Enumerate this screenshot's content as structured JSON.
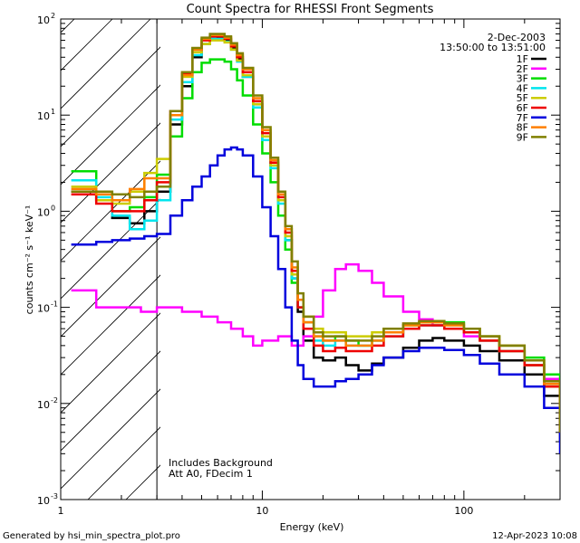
{
  "chart_data": {
    "type": "line",
    "title": "Count Spectra for RHESSI Front Segments",
    "xlabel": "Energy (keV)",
    "ylabel": "counts cm⁻² s⁻¹ keV⁻¹",
    "xscale": "log",
    "yscale": "log",
    "xlim": [
      1,
      300
    ],
    "ylim": [
      0.001,
      100
    ],
    "x_tick_labels": [
      {
        "value": 1,
        "label": "1"
      },
      {
        "value": 10,
        "label": "10"
      },
      {
        "value": 100,
        "label": "100"
      }
    ],
    "y_tick_labels": [
      {
        "value": 0.001,
        "label": "10",
        "exp": "-3"
      },
      {
        "value": 0.01,
        "label": "10",
        "exp": "-2"
      },
      {
        "value": 0.1,
        "label": "10",
        "exp": "-1"
      },
      {
        "value": 1,
        "label": "10",
        "exp": "0"
      },
      {
        "value": 10,
        "label": "10",
        "exp": "1"
      },
      {
        "value": 100,
        "label": "10",
        "exp": "2"
      }
    ],
    "excluded_region": {
      "x_start": 1,
      "x_end": 3,
      "style": "hatched"
    },
    "date": "2-Dec-2003",
    "time_range": "13:50:00 to 13:51:00",
    "legend_position": "top-right",
    "annotations": [
      "Includes Background",
      "Att A0, FDecim 1"
    ],
    "series": [
      {
        "name": "1F",
        "color": "#000000",
        "x": [
          1.2,
          1.5,
          1.8,
          2.2,
          2.6,
          3.0,
          3.5,
          4,
          4.5,
          5,
          5.5,
          6,
          6.5,
          7,
          7.5,
          8,
          9,
          10,
          11,
          12,
          13,
          14,
          15,
          16,
          18,
          20,
          23,
          26,
          30,
          35,
          40,
          50,
          60,
          70,
          80,
          100,
          120,
          150,
          200,
          250,
          300
        ],
        "y": [
          1.6,
          1.3,
          0.85,
          0.75,
          1.0,
          1.6,
          8,
          20,
          40,
          55,
          62,
          63,
          60,
          50,
          38,
          25,
          13,
          6,
          3,
          1.3,
          0.5,
          0.2,
          0.09,
          0.045,
          0.03,
          0.028,
          0.03,
          0.025,
          0.022,
          0.026,
          0.03,
          0.038,
          0.045,
          0.048,
          0.045,
          0.04,
          0.035,
          0.028,
          0.02,
          0.012,
          0.004
        ]
      },
      {
        "name": "2F",
        "color": "#ff00ff",
        "x": [
          1.2,
          1.5,
          2.0,
          2.5,
          3.0,
          4,
          5,
          6,
          7,
          8,
          9,
          10,
          12,
          14,
          16,
          18,
          20,
          23,
          26,
          30,
          35,
          40,
          50,
          60,
          70,
          80,
          100,
          120,
          150,
          200,
          250,
          300
        ],
        "y": [
          0.15,
          0.1,
          0.1,
          0.09,
          0.1,
          0.09,
          0.08,
          0.07,
          0.06,
          0.05,
          0.04,
          0.045,
          0.05,
          0.04,
          0.05,
          0.08,
          0.15,
          0.25,
          0.28,
          0.24,
          0.18,
          0.13,
          0.09,
          0.075,
          0.065,
          0.06,
          0.05,
          0.045,
          0.035,
          0.025,
          0.018,
          0.008
        ]
      },
      {
        "name": "3F",
        "color": "#00dd00",
        "x": [
          1.2,
          1.5,
          1.8,
          2.2,
          2.6,
          3.0,
          3.5,
          4,
          4.5,
          5,
          5.5,
          6,
          6.5,
          7,
          7.5,
          8,
          9,
          10,
          11,
          12,
          13,
          14,
          15,
          16,
          18,
          20,
          23,
          26,
          30,
          35,
          40,
          50,
          60,
          70,
          80,
          100,
          120,
          150,
          200,
          250,
          300
        ],
        "y": [
          2.6,
          1.6,
          1.0,
          1.1,
          1.4,
          2.4,
          6,
          15,
          28,
          35,
          38,
          38,
          36,
          30,
          23,
          16,
          8,
          4,
          2,
          0.9,
          0.4,
          0.18,
          0.1,
          0.07,
          0.05,
          0.045,
          0.05,
          0.045,
          0.04,
          0.045,
          0.055,
          0.065,
          0.07,
          0.072,
          0.07,
          0.06,
          0.05,
          0.04,
          0.03,
          0.02,
          0.006
        ]
      },
      {
        "name": "4F",
        "color": "#00e5ee",
        "x": [
          1.2,
          1.5,
          1.8,
          2.2,
          2.6,
          3.0,
          3.5,
          4,
          4.5,
          5,
          5.5,
          6,
          6.5,
          7,
          7.5,
          8,
          9,
          10,
          11,
          12,
          13,
          14,
          15,
          16,
          18,
          20,
          23,
          26,
          30,
          35,
          40,
          50,
          60,
          70,
          80,
          100,
          120,
          150,
          200,
          250,
          300
        ],
        "y": [
          2.1,
          1.4,
          0.9,
          0.65,
          0.8,
          1.3,
          9,
          22,
          42,
          55,
          62,
          62,
          58,
          48,
          36,
          25,
          12,
          5.5,
          2.8,
          1.2,
          0.5,
          0.2,
          0.1,
          0.06,
          0.045,
          0.04,
          0.045,
          0.04,
          0.04,
          0.045,
          0.05,
          0.06,
          0.065,
          0.065,
          0.06,
          0.055,
          0.045,
          0.035,
          0.025,
          0.015,
          0.005
        ]
      },
      {
        "name": "5F",
        "color": "#cccc00",
        "x": [
          1.2,
          1.5,
          1.8,
          2.2,
          2.6,
          3.0,
          3.5,
          4,
          4.5,
          5,
          5.5,
          6,
          6.5,
          7,
          7.5,
          8,
          9,
          10,
          11,
          12,
          13,
          14,
          15,
          16,
          18,
          20,
          23,
          26,
          30,
          35,
          40,
          50,
          60,
          70,
          80,
          100,
          120,
          150,
          200,
          250,
          300
        ],
        "y": [
          1.8,
          1.3,
          1.2,
          1.6,
          2.5,
          3.5,
          10,
          25,
          45,
          55,
          60,
          60,
          57,
          48,
          37,
          26,
          13,
          6,
          3,
          1.3,
          0.55,
          0.22,
          0.12,
          0.08,
          0.06,
          0.055,
          0.055,
          0.05,
          0.05,
          0.055,
          0.06,
          0.065,
          0.07,
          0.07,
          0.065,
          0.055,
          0.045,
          0.035,
          0.025,
          0.015,
          0.005
        ]
      },
      {
        "name": "6F",
        "color": "#ee0000",
        "x": [
          1.2,
          1.5,
          1.8,
          2.2,
          2.6,
          3.0,
          3.5,
          4,
          4.5,
          5,
          5.5,
          6,
          6.5,
          7,
          7.5,
          8,
          9,
          10,
          11,
          12,
          13,
          14,
          15,
          16,
          18,
          20,
          23,
          26,
          30,
          35,
          40,
          50,
          60,
          70,
          80,
          100,
          120,
          150,
          200,
          250,
          300
        ],
        "y": [
          1.5,
          1.2,
          1.0,
          1.0,
          1.3,
          2.0,
          11,
          27,
          48,
          60,
          66,
          66,
          62,
          52,
          40,
          28,
          14,
          6.5,
          3.2,
          1.4,
          0.6,
          0.24,
          0.1,
          0.06,
          0.04,
          0.035,
          0.038,
          0.035,
          0.035,
          0.04,
          0.05,
          0.06,
          0.065,
          0.065,
          0.06,
          0.055,
          0.045,
          0.035,
          0.025,
          0.015,
          0.005
        ]
      },
      {
        "name": "7F",
        "color": "#0000dd",
        "x": [
          1.2,
          1.5,
          1.8,
          2.2,
          2.6,
          3.0,
          3.5,
          4,
          4.5,
          5,
          5.5,
          6,
          6.5,
          7,
          7.5,
          8,
          9,
          10,
          11,
          12,
          13,
          14,
          15,
          16,
          18,
          20,
          23,
          26,
          30,
          35,
          40,
          50,
          60,
          70,
          80,
          100,
          120,
          150,
          200,
          250,
          300
        ],
        "y": [
          0.45,
          0.48,
          0.5,
          0.52,
          0.55,
          0.58,
          0.9,
          1.3,
          1.8,
          2.3,
          3.0,
          3.8,
          4.4,
          4.6,
          4.4,
          3.8,
          2.3,
          1.1,
          0.55,
          0.25,
          0.1,
          0.045,
          0.025,
          0.018,
          0.015,
          0.015,
          0.017,
          0.018,
          0.02,
          0.025,
          0.03,
          0.035,
          0.038,
          0.038,
          0.036,
          0.032,
          0.026,
          0.02,
          0.015,
          0.009,
          0.003
        ]
      },
      {
        "name": "8F",
        "color": "#ff7f00",
        "x": [
          1.2,
          1.5,
          1.8,
          2.2,
          2.6,
          3.0,
          3.5,
          4,
          4.5,
          5,
          5.5,
          6,
          6.5,
          7,
          7.5,
          8,
          9,
          10,
          11,
          12,
          13,
          14,
          15,
          16,
          18,
          20,
          23,
          26,
          30,
          35,
          40,
          50,
          60,
          70,
          80,
          100,
          120,
          150,
          200,
          250,
          300
        ],
        "y": [
          1.7,
          1.5,
          1.3,
          1.7,
          2.2,
          2.2,
          10,
          26,
          48,
          62,
          68,
          68,
          64,
          54,
          42,
          30,
          15,
          7,
          3.4,
          1.5,
          0.65,
          0.26,
          0.12,
          0.07,
          0.05,
          0.045,
          0.045,
          0.04,
          0.04,
          0.045,
          0.055,
          0.065,
          0.07,
          0.07,
          0.065,
          0.06,
          0.05,
          0.04,
          0.028,
          0.016,
          0.005
        ]
      },
      {
        "name": "9F",
        "color": "#808000",
        "x": [
          1.2,
          1.5,
          1.8,
          2.2,
          2.6,
          3.0,
          3.5,
          4,
          4.5,
          5,
          5.5,
          6,
          6.5,
          7,
          7.5,
          8,
          9,
          10,
          11,
          12,
          13,
          14,
          15,
          16,
          18,
          20,
          23,
          26,
          30,
          35,
          40,
          50,
          60,
          70,
          80,
          100,
          120,
          150,
          200,
          250,
          300
        ],
        "y": [
          1.6,
          1.6,
          1.5,
          1.4,
          1.6,
          1.8,
          11,
          28,
          50,
          64,
          70,
          70,
          66,
          56,
          44,
          31,
          16,
          7.5,
          3.6,
          1.6,
          0.7,
          0.3,
          0.14,
          0.08,
          0.055,
          0.05,
          0.05,
          0.045,
          0.045,
          0.05,
          0.06,
          0.068,
          0.072,
          0.072,
          0.068,
          0.06,
          0.05,
          0.04,
          0.028,
          0.017,
          0.005
        ]
      }
    ]
  },
  "footer": {
    "generated_by": "Generated by hsi_min_spectra_plot.pro",
    "timestamp": "12-Apr-2023 10:08"
  }
}
